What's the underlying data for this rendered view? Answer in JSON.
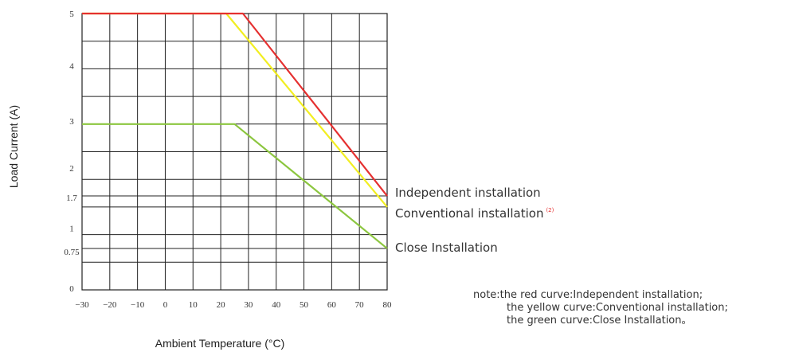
{
  "chart_data": {
    "type": "line",
    "xlabel": "Ambient Temperature (°C)",
    "ylabel": "Load Current (A)",
    "xlim": [
      -30,
      80
    ],
    "ylim": [
      0,
      5
    ],
    "x_ticks": [
      "-30",
      "-20",
      "-10",
      "0",
      "10",
      "20",
      "30",
      "40",
      "50",
      "60",
      "70",
      "80"
    ],
    "y_ticks": [
      {
        "value": 0,
        "label": "0"
      },
      {
        "value": 0.75,
        "label": "0.75"
      },
      {
        "value": 1,
        "label": "1"
      },
      {
        "value": 1.7,
        "label": "1.7"
      },
      {
        "value": 2,
        "label": "2"
      },
      {
        "value": 3,
        "label": "3"
      },
      {
        "value": 4,
        "label": "4"
      },
      {
        "value": 5,
        "label": "5"
      }
    ],
    "grid": true,
    "series": [
      {
        "name": "Independent installation",
        "color": "#e53030",
        "x": [
          -30,
          28,
          80
        ],
        "y": [
          5,
          5,
          1.7
        ]
      },
      {
        "name": "Conventional installation",
        "superscript": "(2)",
        "color": "#f2ee22",
        "x": [
          -30,
          22,
          80
        ],
        "y": [
          5,
          5,
          1.5
        ]
      },
      {
        "name": "Close Installation",
        "color": "#8cc63f",
        "x": [
          -30,
          25,
          80
        ],
        "y": [
          3,
          3,
          0.75
        ]
      }
    ]
  },
  "note": {
    "line1": "note:the red curve:Independent installation;",
    "line2": "the yellow curve:Conventional installation;",
    "line3": "the green curve:Close Installation。"
  }
}
